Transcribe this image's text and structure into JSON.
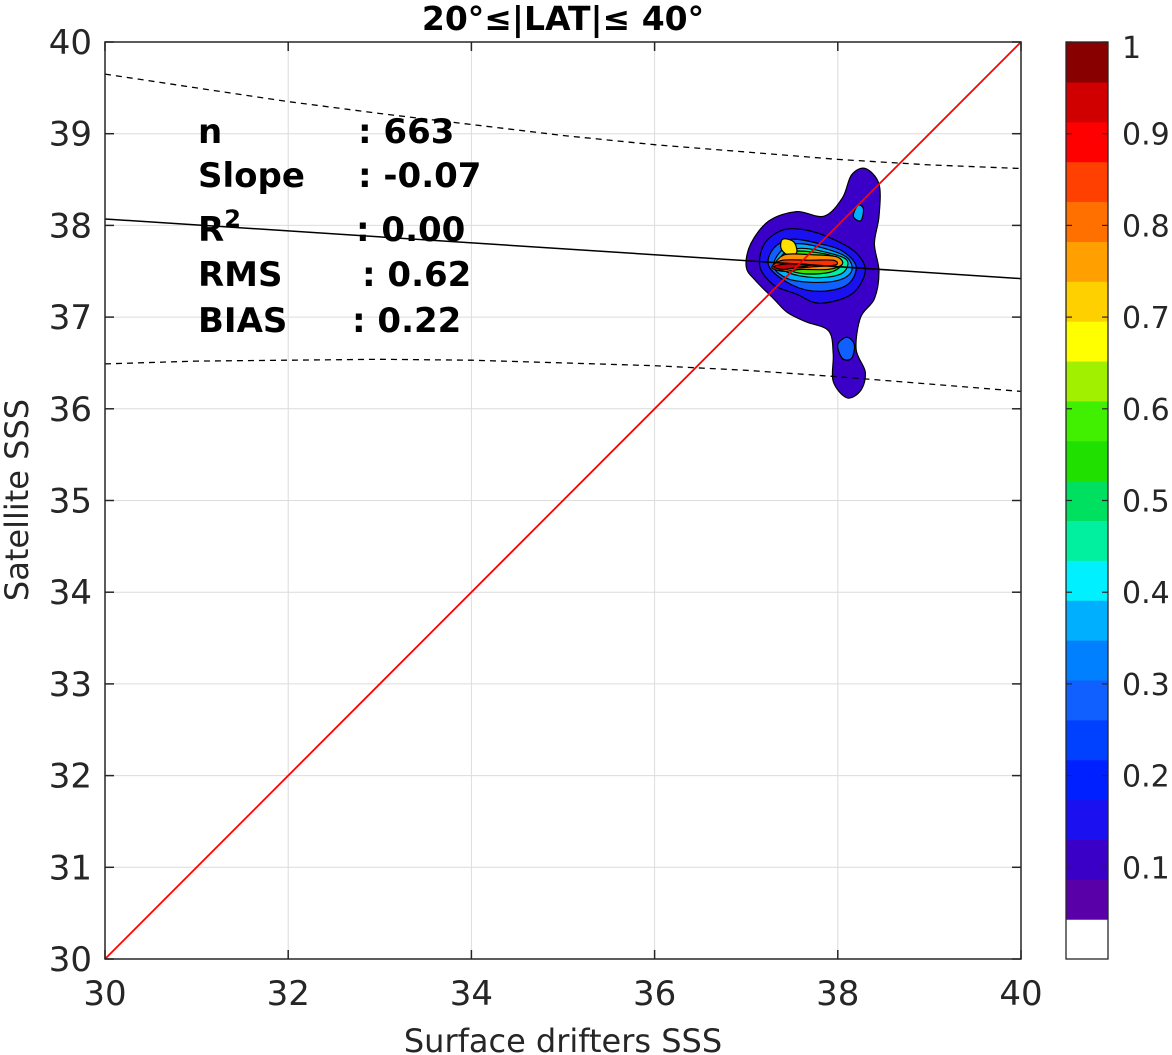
{
  "chart_data": {
    "type": "heatmap",
    "title": "20°≤|LAT|≤ 40°",
    "xlabel": "Surface drifters SSS",
    "ylabel": "Satellite SSS",
    "xlim": [
      30,
      40
    ],
    "ylim": [
      30,
      40
    ],
    "xticks": [
      30,
      32,
      34,
      36,
      38,
      40
    ],
    "yticks": [
      30,
      31,
      32,
      33,
      34,
      35,
      36,
      37,
      38,
      39,
      40
    ],
    "grid": true,
    "stats": [
      {
        "label": "n",
        "value": ": 663"
      },
      {
        "label": "Slope",
        "value": ": -0.07"
      },
      {
        "label": "R",
        "sup": "2",
        "value": ": 0.00"
      },
      {
        "label": "RMS",
        "value": ": 0.62"
      },
      {
        "label": "BIAS",
        "value": ": 0.22"
      }
    ],
    "identity_line": {
      "color": "#ff0000",
      "from": [
        30,
        30
      ],
      "to": [
        40,
        40
      ]
    },
    "regression_line": {
      "color": "#000000",
      "from": [
        30,
        38.07
      ],
      "to": [
        40,
        37.42
      ]
    },
    "confidence_bounds": [
      {
        "x": [
          30,
          31,
          32,
          33,
          34,
          35,
          36,
          37,
          38,
          39,
          40
        ],
        "y": [
          39.65,
          39.5,
          39.35,
          39.22,
          39.1,
          38.98,
          38.88,
          38.8,
          38.72,
          38.66,
          38.62
        ]
      },
      {
        "x": [
          30,
          31,
          32,
          33,
          34,
          35,
          36,
          37,
          38,
          39,
          40
        ],
        "y": [
          36.49,
          36.52,
          36.53,
          36.54,
          36.53,
          36.5,
          36.47,
          36.42,
          36.35,
          36.27,
          36.19
        ]
      }
    ],
    "density_contours": [
      {
        "level": 0.05,
        "color": "#3a00c8",
        "points": [
          [
            37.0,
            37.55
          ],
          [
            37.05,
            37.8
          ],
          [
            37.25,
            38.05
          ],
          [
            37.55,
            38.15
          ],
          [
            37.85,
            38.1
          ],
          [
            38.05,
            38.3
          ],
          [
            38.15,
            38.55
          ],
          [
            38.3,
            38.62
          ],
          [
            38.45,
            38.45
          ],
          [
            38.45,
            38.1
          ],
          [
            38.4,
            37.8
          ],
          [
            38.45,
            37.5
          ],
          [
            38.4,
            37.2
          ],
          [
            38.25,
            37.0
          ],
          [
            38.2,
            36.65
          ],
          [
            38.3,
            36.4
          ],
          [
            38.25,
            36.2
          ],
          [
            38.1,
            36.12
          ],
          [
            37.95,
            36.3
          ],
          [
            37.95,
            36.6
          ],
          [
            37.9,
            36.85
          ],
          [
            37.65,
            36.95
          ],
          [
            37.45,
            37.05
          ],
          [
            37.3,
            37.2
          ],
          [
            37.1,
            37.4
          ]
        ]
      },
      {
        "level": 0.1,
        "color": "#1a10f0",
        "points": [
          [
            37.15,
            37.55
          ],
          [
            37.2,
            37.8
          ],
          [
            37.4,
            37.95
          ],
          [
            37.65,
            37.95
          ],
          [
            37.95,
            37.85
          ],
          [
            38.2,
            37.7
          ],
          [
            38.3,
            37.5
          ],
          [
            38.15,
            37.25
          ],
          [
            37.8,
            37.15
          ],
          [
            37.55,
            37.25
          ],
          [
            37.3,
            37.35
          ]
        ]
      },
      {
        "level": 0.2,
        "color": "#1060ff",
        "points": [
          [
            37.25,
            37.55
          ],
          [
            37.3,
            37.75
          ],
          [
            37.5,
            37.85
          ],
          [
            37.8,
            37.8
          ],
          [
            38.05,
            37.72
          ],
          [
            38.2,
            37.55
          ],
          [
            38.1,
            37.35
          ],
          [
            37.8,
            37.28
          ],
          [
            37.5,
            37.35
          ]
        ]
      },
      {
        "level": 0.3,
        "color": "#00b0ff",
        "points": [
          [
            37.3,
            37.55
          ],
          [
            37.38,
            37.72
          ],
          [
            37.55,
            37.8
          ],
          [
            37.85,
            37.75
          ],
          [
            38.1,
            37.65
          ],
          [
            38.15,
            37.5
          ],
          [
            38.0,
            37.4
          ],
          [
            37.7,
            37.38
          ],
          [
            37.45,
            37.42
          ]
        ]
      },
      {
        "level": 0.4,
        "color": "#00f0a0",
        "points": [
          [
            37.35,
            37.57
          ],
          [
            37.42,
            37.7
          ],
          [
            37.6,
            37.75
          ],
          [
            37.9,
            37.7
          ],
          [
            38.1,
            37.62
          ],
          [
            38.05,
            37.48
          ],
          [
            37.8,
            37.43
          ],
          [
            37.5,
            37.47
          ]
        ]
      },
      {
        "level": 0.5,
        "color": "#40e000",
        "points": [
          [
            37.4,
            37.58
          ],
          [
            37.45,
            37.7
          ],
          [
            37.6,
            37.72
          ],
          [
            37.9,
            37.68
          ],
          [
            38.05,
            37.6
          ],
          [
            37.95,
            37.5
          ],
          [
            37.7,
            37.47
          ],
          [
            37.5,
            37.5
          ]
        ]
      },
      {
        "level": 0.65,
        "color": "#ffe000",
        "points": [
          [
            37.38,
            37.75
          ],
          [
            37.4,
            37.85
          ],
          [
            37.52,
            37.82
          ],
          [
            37.55,
            37.7
          ],
          [
            37.45,
            37.68
          ]
        ]
      },
      {
        "level": 0.75,
        "color": "#ff9000",
        "points": [
          [
            37.3,
            37.55
          ],
          [
            37.42,
            37.68
          ],
          [
            37.7,
            37.68
          ],
          [
            37.98,
            37.66
          ],
          [
            38.05,
            37.58
          ],
          [
            37.9,
            37.52
          ],
          [
            37.6,
            37.52
          ],
          [
            37.4,
            37.5
          ]
        ]
      },
      {
        "level": 0.85,
        "color": "#ff3000",
        "points": [
          [
            37.28,
            37.55
          ],
          [
            37.4,
            37.62
          ],
          [
            37.7,
            37.62
          ],
          [
            37.95,
            37.62
          ],
          [
            37.98,
            37.57
          ],
          [
            37.75,
            37.55
          ],
          [
            37.5,
            37.53
          ],
          [
            37.35,
            37.51
          ]
        ]
      },
      {
        "level": 0.95,
        "color": "#d00000",
        "points": [
          [
            37.3,
            37.55
          ],
          [
            37.45,
            37.58
          ],
          [
            37.7,
            37.57
          ],
          [
            37.55,
            37.54
          ],
          [
            37.4,
            37.52
          ]
        ]
      },
      {
        "level": 0.2,
        "color": "#1060ff",
        "points": [
          [
            38.0,
            36.7
          ],
          [
            38.1,
            36.78
          ],
          [
            38.18,
            36.7
          ],
          [
            38.15,
            36.55
          ],
          [
            38.05,
            36.55
          ]
        ]
      },
      {
        "level": 0.3,
        "color": "#00b0ff",
        "points": [
          [
            38.17,
            38.1
          ],
          [
            38.22,
            38.22
          ],
          [
            38.28,
            38.18
          ],
          [
            38.25,
            38.05
          ]
        ]
      }
    ],
    "colorbar": {
      "ticks": [
        0.1,
        0.2,
        0.3,
        0.4,
        0.5,
        0.6,
        0.7,
        0.8,
        0.9,
        1
      ],
      "tick_labels": [
        "0.1",
        "0.2",
        "0.3",
        "0.4",
        "0.5",
        "0.6",
        "0.7",
        "0.8",
        "0.9",
        "1"
      ],
      "colors": [
        "#ffffff",
        "#5a00a8",
        "#3a00c8",
        "#1a10f0",
        "#0020ff",
        "#0040ff",
        "#1060ff",
        "#0080ff",
        "#00b0ff",
        "#00f0ff",
        "#00f0a0",
        "#00e060",
        "#20e000",
        "#40f000",
        "#a0f000",
        "#ffff00",
        "#ffd000",
        "#ffa000",
        "#ff7000",
        "#ff4000",
        "#ff0000",
        "#d00000",
        "#880000"
      ]
    }
  }
}
